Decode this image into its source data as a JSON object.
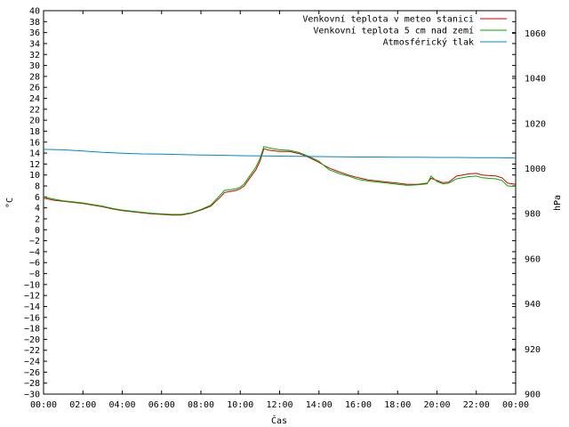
{
  "chart_data": {
    "type": "line",
    "xlabel": "Čas",
    "ylabel": "°C",
    "y2label": "hPa",
    "grid": false,
    "legend_position": "top-right",
    "xlim_hours": [
      0,
      24
    ],
    "x_tick_labels": [
      "00:00",
      "02:00",
      "04:00",
      "06:00",
      "08:00",
      "10:00",
      "12:00",
      "14:00",
      "16:00",
      "18:00",
      "20:00",
      "22:00",
      "00:00"
    ],
    "ylim": [
      -30,
      40
    ],
    "y_ticks": [
      40,
      38,
      36,
      34,
      32,
      30,
      28,
      26,
      24,
      22,
      20,
      18,
      16,
      14,
      12,
      10,
      8,
      6,
      4,
      2,
      0,
      -2,
      -4,
      -6,
      -8,
      -10,
      -12,
      -14,
      -16,
      -18,
      -20,
      -22,
      -24,
      -26,
      -28,
      -30
    ],
    "y2lim": [
      900,
      1070
    ],
    "y2_ticks": [
      1060,
      1040,
      1020,
      1000,
      980,
      960,
      940,
      920,
      900
    ],
    "series": [
      {
        "name": "Venkovní teplota v meteo stanici",
        "axis": "left",
        "color": "#cc0000",
        "x": [
          0,
          0.5,
          1,
          1.5,
          2,
          2.5,
          3,
          3.5,
          4,
          4.5,
          5,
          5.5,
          6,
          6.5,
          7,
          7.5,
          8,
          8.5,
          9,
          9.2,
          9.5,
          9.8,
          10,
          10.2,
          10.5,
          10.8,
          11,
          11.2,
          11.5,
          12,
          12.5,
          13,
          13.5,
          14,
          14.5,
          15,
          15.5,
          16,
          16.5,
          17,
          17.5,
          18,
          18.5,
          19,
          19.5,
          19.7,
          20,
          20.3,
          20.6,
          21,
          21.3,
          21.6,
          22,
          22.3,
          22.6,
          23,
          23.3,
          23.6,
          24
        ],
        "values": [
          5.8,
          5.4,
          5.2,
          5.0,
          4.8,
          4.5,
          4.2,
          3.8,
          3.5,
          3.3,
          3.1,
          2.9,
          2.8,
          2.7,
          2.7,
          3.0,
          3.6,
          4.3,
          6.0,
          6.8,
          7.0,
          7.2,
          7.5,
          8.0,
          9.5,
          11.0,
          12.5,
          14.8,
          14.5,
          14.3,
          14.3,
          13.9,
          13.2,
          12.3,
          11.3,
          10.6,
          10.0,
          9.5,
          9.1,
          8.9,
          8.7,
          8.5,
          8.3,
          8.3,
          8.5,
          9.4,
          9.0,
          8.6,
          8.7,
          9.8,
          10.0,
          10.2,
          10.3,
          10.0,
          9.9,
          9.8,
          9.5,
          8.5,
          8.3
        ]
      },
      {
        "name": "Venkovní teplota 5 cm nad zemí",
        "axis": "left",
        "color": "#00aa00",
        "x": [
          0,
          0.5,
          1,
          1.5,
          2,
          2.5,
          3,
          3.5,
          4,
          4.5,
          5,
          5.5,
          6,
          6.5,
          7,
          7.5,
          8,
          8.5,
          9,
          9.2,
          9.5,
          9.8,
          10,
          10.2,
          10.5,
          10.8,
          11,
          11.2,
          11.5,
          12,
          12.5,
          13,
          13.5,
          14,
          14.5,
          15,
          15.5,
          16,
          16.5,
          17,
          17.5,
          18,
          18.5,
          19,
          19.5,
          19.7,
          20,
          20.3,
          20.6,
          21,
          21.3,
          21.6,
          22,
          22.3,
          22.6,
          23,
          23.3,
          23.6,
          24
        ],
        "values": [
          6.0,
          5.6,
          5.3,
          5.1,
          4.9,
          4.6,
          4.3,
          3.9,
          3.6,
          3.4,
          3.2,
          3.0,
          2.9,
          2.8,
          2.8,
          3.1,
          3.7,
          4.5,
          6.4,
          7.2,
          7.3,
          7.5,
          7.8,
          8.4,
          9.9,
          11.5,
          13.0,
          15.2,
          14.9,
          14.6,
          14.5,
          14.1,
          13.4,
          12.5,
          11.0,
          10.3,
          9.8,
          9.2,
          8.9,
          8.7,
          8.5,
          8.3,
          8.1,
          8.2,
          8.4,
          9.8,
          8.8,
          8.4,
          8.5,
          9.3,
          9.5,
          9.7,
          9.8,
          9.5,
          9.4,
          9.3,
          9.0,
          8.0,
          7.9
        ]
      },
      {
        "name": "Atmosférický tlak",
        "axis": "right",
        "color": "#0088cc",
        "x": [
          0,
          1,
          2,
          3,
          4,
          5,
          6,
          7,
          8,
          9,
          10,
          11,
          12,
          13,
          14,
          15,
          16,
          17,
          18,
          19,
          20,
          21,
          22,
          23,
          24
        ],
        "values": [
          1008.5,
          1008.3,
          1007.8,
          1007.2,
          1006.8,
          1006.5,
          1006.4,
          1006.2,
          1006.0,
          1005.9,
          1005.7,
          1005.6,
          1005.5,
          1005.4,
          1005.3,
          1005.2,
          1005.1,
          1005.1,
          1005.0,
          1005.0,
          1004.9,
          1004.9,
          1004.8,
          1004.8,
          1004.7
        ]
      }
    ]
  }
}
